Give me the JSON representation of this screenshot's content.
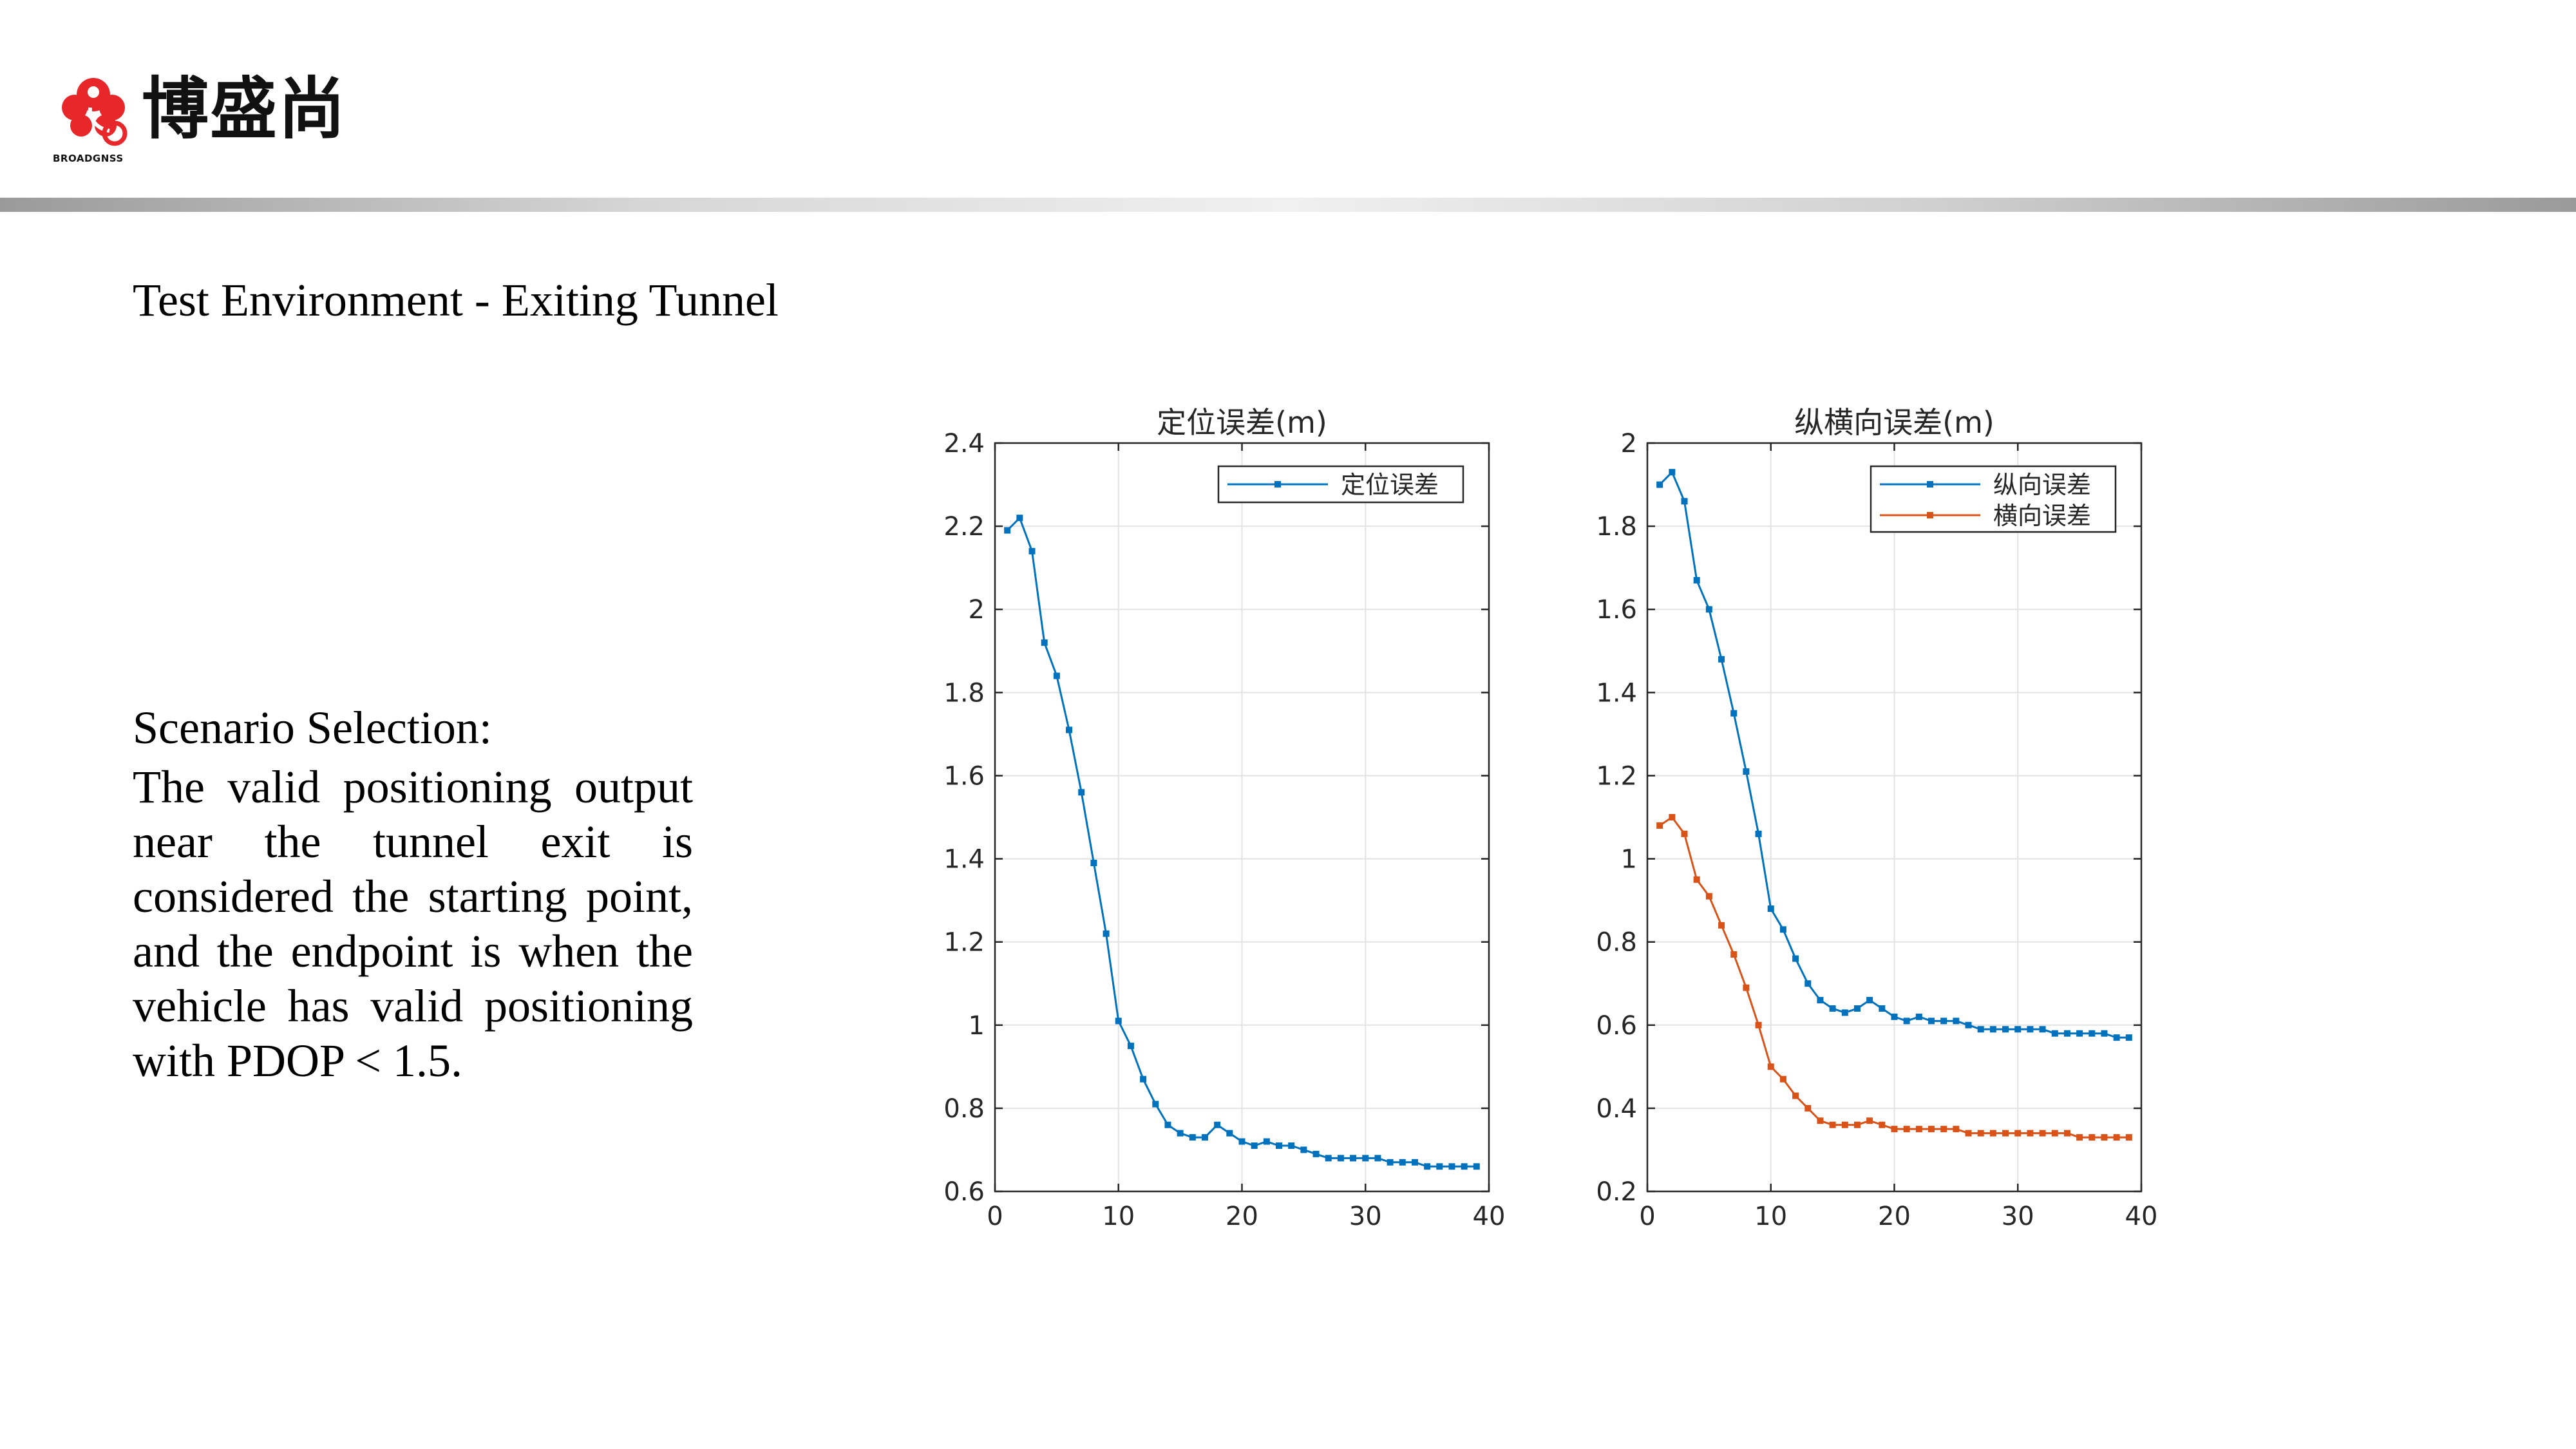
{
  "logo": {
    "brand_text": "博盛尚",
    "subtext": "BROADGNSS",
    "brand_color": "#e8272a"
  },
  "slide": {
    "title": "Test Environment - Exiting Tunnel",
    "description": {
      "heading": "Scenario Selection:",
      "body": "The valid positioning output near the tunnel exit is considered the starting point, and the endpoint is when the vehicle has valid positioning with PDOP < 1.5."
    }
  },
  "chart_data": [
    {
      "type": "line",
      "title": "定位误差(m)",
      "xlabel": "",
      "ylabel": "",
      "xlim": [
        0,
        40
      ],
      "ylim": [
        0.6,
        2.4
      ],
      "xticks": [
        "0",
        "10",
        "20",
        "30",
        "40"
      ],
      "yticks": [
        "0.6",
        "0.8",
        "1",
        "1.2",
        "1.4",
        "1.6",
        "1.8",
        "2",
        "2.2",
        "2.4"
      ],
      "grid": true,
      "legend_position": "top-right",
      "x": [
        1,
        2,
        3,
        4,
        5,
        6,
        7,
        8,
        9,
        10,
        11,
        12,
        13,
        14,
        15,
        16,
        17,
        18,
        19,
        20,
        21,
        22,
        23,
        24,
        25,
        26,
        27,
        28,
        29,
        30,
        31,
        32,
        33,
        34,
        35,
        36,
        37,
        38,
        39
      ],
      "series": [
        {
          "name": "定位误差",
          "color": "#0072bd",
          "values": [
            2.19,
            2.22,
            2.14,
            1.92,
            1.84,
            1.71,
            1.56,
            1.39,
            1.22,
            1.01,
            0.95,
            0.87,
            0.81,
            0.76,
            0.74,
            0.73,
            0.73,
            0.76,
            0.74,
            0.72,
            0.71,
            0.72,
            0.71,
            0.71,
            0.7,
            0.69,
            0.68,
            0.68,
            0.68,
            0.68,
            0.68,
            0.67,
            0.67,
            0.67,
            0.66,
            0.66,
            0.66,
            0.66,
            0.66
          ]
        }
      ]
    },
    {
      "type": "line",
      "title": "纵横向误差(m)",
      "xlabel": "",
      "ylabel": "",
      "xlim": [
        0,
        40
      ],
      "ylim": [
        0.2,
        2
      ],
      "xticks": [
        "0",
        "10",
        "20",
        "30",
        "40"
      ],
      "yticks": [
        "0.2",
        "0.4",
        "0.6",
        "0.8",
        "1",
        "1.2",
        "1.4",
        "1.6",
        "1.8",
        "2"
      ],
      "grid": true,
      "legend_position": "top-right",
      "x": [
        1,
        2,
        3,
        4,
        5,
        6,
        7,
        8,
        9,
        10,
        11,
        12,
        13,
        14,
        15,
        16,
        17,
        18,
        19,
        20,
        21,
        22,
        23,
        24,
        25,
        26,
        27,
        28,
        29,
        30,
        31,
        32,
        33,
        34,
        35,
        36,
        37,
        38,
        39
      ],
      "series": [
        {
          "name": "纵向误差",
          "color": "#0072bd",
          "values": [
            1.9,
            1.93,
            1.86,
            1.67,
            1.6,
            1.48,
            1.35,
            1.21,
            1.06,
            0.88,
            0.83,
            0.76,
            0.7,
            0.66,
            0.64,
            0.63,
            0.64,
            0.66,
            0.64,
            0.62,
            0.61,
            0.62,
            0.61,
            0.61,
            0.61,
            0.6,
            0.59,
            0.59,
            0.59,
            0.59,
            0.59,
            0.59,
            0.58,
            0.58,
            0.58,
            0.58,
            0.58,
            0.57,
            0.57
          ]
        },
        {
          "name": "横向误差",
          "color": "#d95319",
          "values": [
            1.08,
            1.1,
            1.06,
            0.95,
            0.91,
            0.84,
            0.77,
            0.69,
            0.6,
            0.5,
            0.47,
            0.43,
            0.4,
            0.37,
            0.36,
            0.36,
            0.36,
            0.37,
            0.36,
            0.35,
            0.35,
            0.35,
            0.35,
            0.35,
            0.35,
            0.34,
            0.34,
            0.34,
            0.34,
            0.34,
            0.34,
            0.34,
            0.34,
            0.34,
            0.33,
            0.33,
            0.33,
            0.33,
            0.33
          ]
        }
      ]
    }
  ]
}
